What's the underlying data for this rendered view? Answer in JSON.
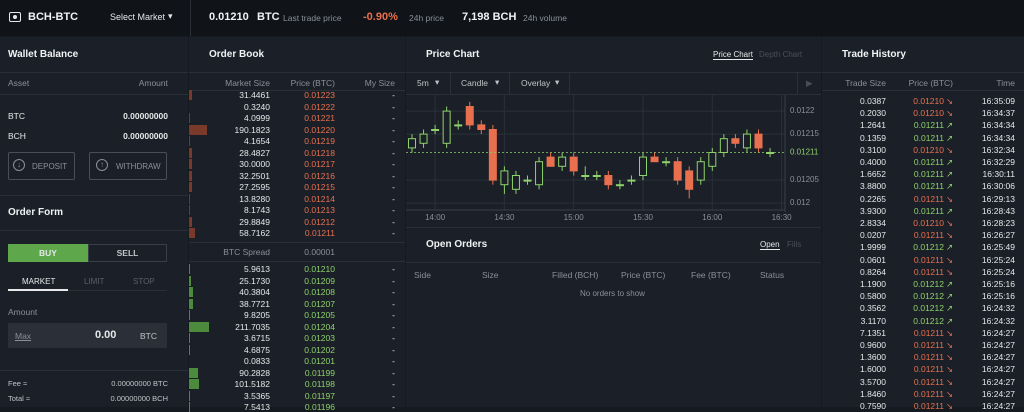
{
  "topbar": {
    "pair": "BCH-BTC",
    "select_market": "Select Market",
    "last_price": "0.01210",
    "last_price_unit": "BTC",
    "last_price_label": "Last trade price",
    "change": "-0.90%",
    "change_label": "24h price",
    "volume": "7,198 BCH",
    "volume_label": "24h volume"
  },
  "wallet": {
    "title": "Wallet Balance",
    "headers": [
      "Asset",
      "Amount"
    ],
    "rows": [
      [
        "BTC",
        "0.00000000"
      ],
      [
        "BCH",
        "0.00000000"
      ]
    ],
    "deposit": "DEPOSIT",
    "withdraw": "WITHDRAW"
  },
  "order_form": {
    "title": "Order Form",
    "sides": [
      "BUY",
      "SELL"
    ],
    "types": [
      "MARKET",
      "LIMIT",
      "STOP"
    ],
    "amount_label": "Amount",
    "max": "Max",
    "amount": "0.00",
    "amount_unit": "BTC",
    "fee_label": "Fee ≈",
    "fee": "0.00000000 BTC",
    "total_label": "Total ≈",
    "total": "0.00000000 BCH"
  },
  "order_book": {
    "title": "Order Book",
    "headers": [
      "Market Size",
      "Price (BTC)",
      "My Size"
    ],
    "asks": [
      [
        "31.4461",
        "0.01223",
        "-"
      ],
      [
        "0.3240",
        "0.01222",
        "-"
      ],
      [
        "4.0999",
        "0.01221",
        "-"
      ],
      [
        "190.1823",
        "0.01220",
        "-"
      ],
      [
        "4.1654",
        "0.01219",
        "-"
      ],
      [
        "28.4827",
        "0.01218",
        "-"
      ],
      [
        "30.0000",
        "0.01217",
        "-"
      ],
      [
        "32.2501",
        "0.01216",
        "-"
      ],
      [
        "27.2595",
        "0.01215",
        "-"
      ],
      [
        "13.8280",
        "0.01214",
        "-"
      ],
      [
        "8.1743",
        "0.01213",
        "-"
      ],
      [
        "29.8849",
        "0.01212",
        "-"
      ],
      [
        "58.7162",
        "0.01211",
        "-"
      ]
    ],
    "spread_label": "BTC Spread",
    "spread": "0.00001",
    "bids": [
      [
        "5.9613",
        "0.01210",
        "-"
      ],
      [
        "25.1730",
        "0.01209",
        "-"
      ],
      [
        "40.3804",
        "0.01208",
        "-"
      ],
      [
        "38.7721",
        "0.01207",
        "-"
      ],
      [
        "9.8205",
        "0.01205",
        "-"
      ],
      [
        "211.7035",
        "0.01204",
        "-"
      ],
      [
        "3.6715",
        "0.01203",
        "-"
      ],
      [
        "4.6875",
        "0.01202",
        "-"
      ],
      [
        "0.0833",
        "0.01201",
        "-"
      ],
      [
        "90.2828",
        "0.01199",
        "-"
      ],
      [
        "101.5182",
        "0.01198",
        "-"
      ],
      [
        "3.5365",
        "0.01197",
        "-"
      ],
      [
        "7.5413",
        "0.01196",
        "-"
      ]
    ]
  },
  "price_chart": {
    "title": "Price Chart",
    "tabs": [
      "Price Chart",
      "Depth Chart"
    ],
    "toolbar": [
      "5m",
      "Candle",
      "Overlay"
    ]
  },
  "chart_data": {
    "type": "candlestick",
    "x": [
      "13:50",
      "13:55",
      "14:00",
      "14:05",
      "14:10",
      "14:15",
      "14:20",
      "14:25",
      "14:30",
      "14:35",
      "14:40",
      "14:45",
      "14:50",
      "14:55",
      "15:00",
      "15:05",
      "15:10",
      "15:15",
      "15:20",
      "15:25",
      "15:30",
      "15:35",
      "15:40",
      "15:45",
      "15:50",
      "15:55",
      "16:00",
      "16:05",
      "16:10",
      "16:15",
      "16:20",
      "16:25"
    ],
    "open": [
      0.01212,
      0.01213,
      0.01216,
      0.01213,
      0.01217,
      0.01221,
      0.01217,
      0.01216,
      0.01204,
      0.01203,
      0.01205,
      0.01204,
      0.0121,
      0.01208,
      0.0121,
      0.01206,
      0.01206,
      0.01206,
      0.01204,
      0.01205,
      0.01206,
      0.0121,
      0.01209,
      0.01209,
      0.01207,
      0.01205,
      0.01208,
      0.01211,
      0.01214,
      0.01212,
      0.01215,
      0.01211
    ],
    "high": [
      0.01215,
      0.01216,
      0.01217,
      0.01221,
      0.01218,
      0.01222,
      0.01218,
      0.01217,
      0.01208,
      0.01207,
      0.01206,
      0.0121,
      0.01211,
      0.01211,
      0.01211,
      0.01208,
      0.01207,
      0.01207,
      0.01205,
      0.01206,
      0.01211,
      0.01211,
      0.0121,
      0.0121,
      0.01208,
      0.0121,
      0.01212,
      0.01215,
      0.01215,
      0.01216,
      0.01216,
      0.01212
    ],
    "low": [
      0.01211,
      0.01212,
      0.01215,
      0.01212,
      0.01216,
      0.01216,
      0.01215,
      0.01204,
      0.01202,
      0.01202,
      0.01204,
      0.01203,
      0.01208,
      0.01207,
      0.01206,
      0.01205,
      0.01205,
      0.01203,
      0.01203,
      0.01204,
      0.01205,
      0.01209,
      0.01208,
      0.01204,
      0.01201,
      0.01204,
      0.01207,
      0.0121,
      0.01212,
      0.01211,
      0.01211,
      0.0121
    ],
    "close": [
      0.01214,
      0.01215,
      0.01216,
      0.0122,
      0.01217,
      0.01217,
      0.01216,
      0.01205,
      0.01207,
      0.01206,
      0.01205,
      0.01209,
      0.01208,
      0.0121,
      0.01207,
      0.01206,
      0.01206,
      0.01204,
      0.01204,
      0.01205,
      0.0121,
      0.01209,
      0.01209,
      0.01205,
      0.01203,
      0.01209,
      0.01211,
      0.01214,
      0.01213,
      0.01215,
      0.01212,
      0.01211
    ],
    "ylim": [
      0.011985,
      0.012235
    ],
    "yticks": [
      0.0122,
      0.01215,
      0.01205,
      0.012
    ],
    "xticks": [
      "14:00",
      "14:30",
      "15:00",
      "15:30",
      "16:00",
      "16:30"
    ],
    "last": 0.01211,
    "up_color": "#8fd16a",
    "down_color": "#e8704e",
    "grid": true
  },
  "open_orders": {
    "title": "Open Orders",
    "tabs": [
      "Open",
      "Fills"
    ],
    "headers": [
      "Side",
      "Size",
      "Filled (BCH)",
      "Price (BTC)",
      "Fee (BTC)",
      "Status"
    ],
    "empty": "No orders to show"
  },
  "trade_history": {
    "title": "Trade History",
    "headers": [
      "Trade Size",
      "Price (BTC)",
      "Time"
    ],
    "rows": [
      {
        "size": "0.0387",
        "price": "0.01210",
        "arrow": "↘",
        "time": "16:35:09",
        "color": "#e8704e"
      },
      {
        "size": "0.2030",
        "price": "0.01210",
        "arrow": "↘",
        "time": "16:34:37",
        "color": "#e8704e"
      },
      {
        "size": "1.2641",
        "price": "0.01211",
        "arrow": "↗",
        "time": "16:34:34",
        "color": "#8fd16a"
      },
      {
        "size": "0.1359",
        "price": "0.01211",
        "arrow": "↗",
        "time": "16:34:34",
        "color": "#8fd16a"
      },
      {
        "size": "0.3100",
        "price": "0.01210",
        "arrow": "↘",
        "time": "16:32:34",
        "color": "#e8704e"
      },
      {
        "size": "0.4000",
        "price": "0.01211",
        "arrow": "↗",
        "time": "16:32:29",
        "color": "#8fd16a"
      },
      {
        "size": "1.6652",
        "price": "0.01211",
        "arrow": "↗",
        "time": "16:30:11",
        "color": "#8fd16a"
      },
      {
        "size": "3.8800",
        "price": "0.01211",
        "arrow": "↗",
        "time": "16:30:06",
        "color": "#8fd16a"
      },
      {
        "size": "0.2265",
        "price": "0.01211",
        "arrow": "↘",
        "time": "16:29:13",
        "color": "#e8704e"
      },
      {
        "size": "3.9300",
        "price": "0.01211",
        "arrow": "↗",
        "time": "16:28:43",
        "color": "#8fd16a"
      },
      {
        "size": "2.8334",
        "price": "0.01210",
        "arrow": "↘",
        "time": "16:28:23",
        "color": "#e8704e"
      },
      {
        "size": "0.0207",
        "price": "0.01211",
        "arrow": "↘",
        "time": "16:26:27",
        "color": "#e8704e"
      },
      {
        "size": "1.9999",
        "price": "0.01212",
        "arrow": "↗",
        "time": "16:25:49",
        "color": "#8fd16a"
      },
      {
        "size": "0.0601",
        "price": "0.01211",
        "arrow": "↘",
        "time": "16:25:24",
        "color": "#e8704e"
      },
      {
        "size": "0.8264",
        "price": "0.01211",
        "arrow": "↘",
        "time": "16:25:24",
        "color": "#e8704e"
      },
      {
        "size": "1.1900",
        "price": "0.01212",
        "arrow": "↗",
        "time": "16:25:16",
        "color": "#8fd16a"
      },
      {
        "size": "0.5800",
        "price": "0.01212",
        "arrow": "↗",
        "time": "16:25:16",
        "color": "#8fd16a"
      },
      {
        "size": "0.3562",
        "price": "0.01212",
        "arrow": "↗",
        "time": "16:24:32",
        "color": "#8fd16a"
      },
      {
        "size": "3.1170",
        "price": "0.01212",
        "arrow": "↗",
        "time": "16:24:32",
        "color": "#8fd16a"
      },
      {
        "size": "7.1351",
        "price": "0.01211",
        "arrow": "↘",
        "time": "16:24:27",
        "color": "#e8704e"
      },
      {
        "size": "0.9600",
        "price": "0.01211",
        "arrow": "↘",
        "time": "16:24:27",
        "color": "#e8704e"
      },
      {
        "size": "1.3600",
        "price": "0.01211",
        "arrow": "↘",
        "time": "16:24:27",
        "color": "#e8704e"
      },
      {
        "size": "1.6000",
        "price": "0.01211",
        "arrow": "↘",
        "time": "16:24:27",
        "color": "#e8704e"
      },
      {
        "size": "3.5700",
        "price": "0.01211",
        "arrow": "↘",
        "time": "16:24:27",
        "color": "#e8704e"
      },
      {
        "size": "1.8460",
        "price": "0.01211",
        "arrow": "↘",
        "time": "16:24:27",
        "color": "#e8704e"
      },
      {
        "size": "0.7590",
        "price": "0.01211",
        "arrow": "↘",
        "time": "16:24:27",
        "color": "#e8704e"
      }
    ]
  }
}
